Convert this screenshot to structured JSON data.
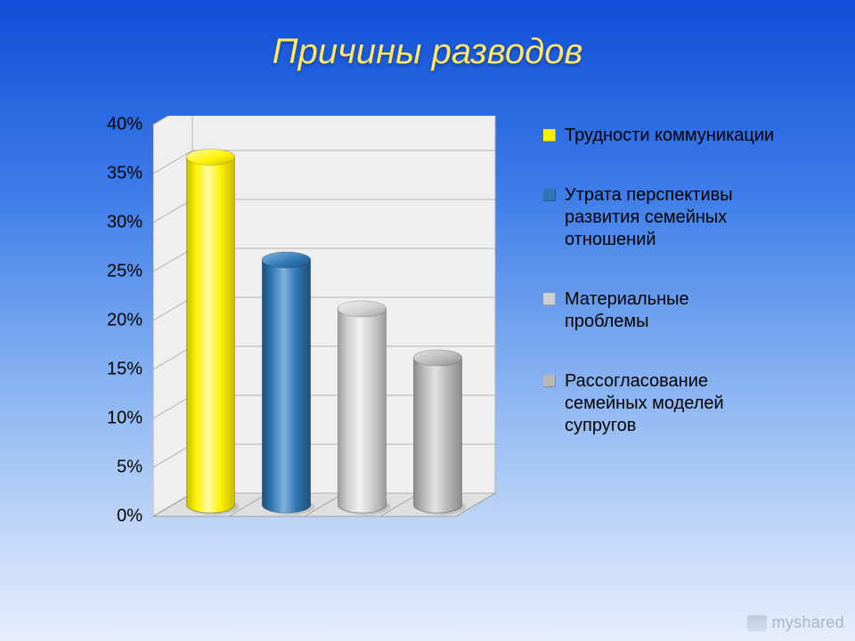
{
  "title": "Причины разводов",
  "watermark_text": "myshared",
  "chart": {
    "type": "3d-cylinder-bar",
    "ylim": [
      0,
      40
    ],
    "ytick_step": 5,
    "ytick_suffix": "%",
    "axis_label_fontsize": 20,
    "axis_label_color": "#000000",
    "floor_fill": "#dfdfdf",
    "floor_stroke": "#9f9f9f",
    "backwall_fill": "#efefef",
    "backwall_stroke": "#b0b0b0",
    "grid_color": "#b0b0b0",
    "series": [
      {
        "label": "Трудности коммуникации",
        "value": 35.5,
        "base": "#fff200",
        "dark": "#c7b900",
        "light": "#fffbaa",
        "legend_swatch": "#fff200"
      },
      {
        "label": "Утрата перспективы развития семейных отношений",
        "value": 25,
        "base": "#2f77b3",
        "dark": "#1f4f79",
        "light": "#7fb3dc",
        "legend_swatch": "#2f77b3"
      },
      {
        "label": "Материальные проблемы",
        "value": 20,
        "base": "#cfcfcf",
        "dark": "#9a9a9a",
        "light": "#f1f1f1",
        "legend_swatch": "#cfcfcf"
      },
      {
        "label": "Рассогласование семейных моделей супругов",
        "value": 15,
        "base": "#b7b7b7",
        "dark": "#8a8a8a",
        "light": "#e3e3e3",
        "legend_swatch": "#b7b7b7"
      }
    ],
    "legend_fontsize": 20,
    "legend_text_color": "#000000",
    "title_fontsize": 40,
    "title_color": "#ffe76a"
  }
}
